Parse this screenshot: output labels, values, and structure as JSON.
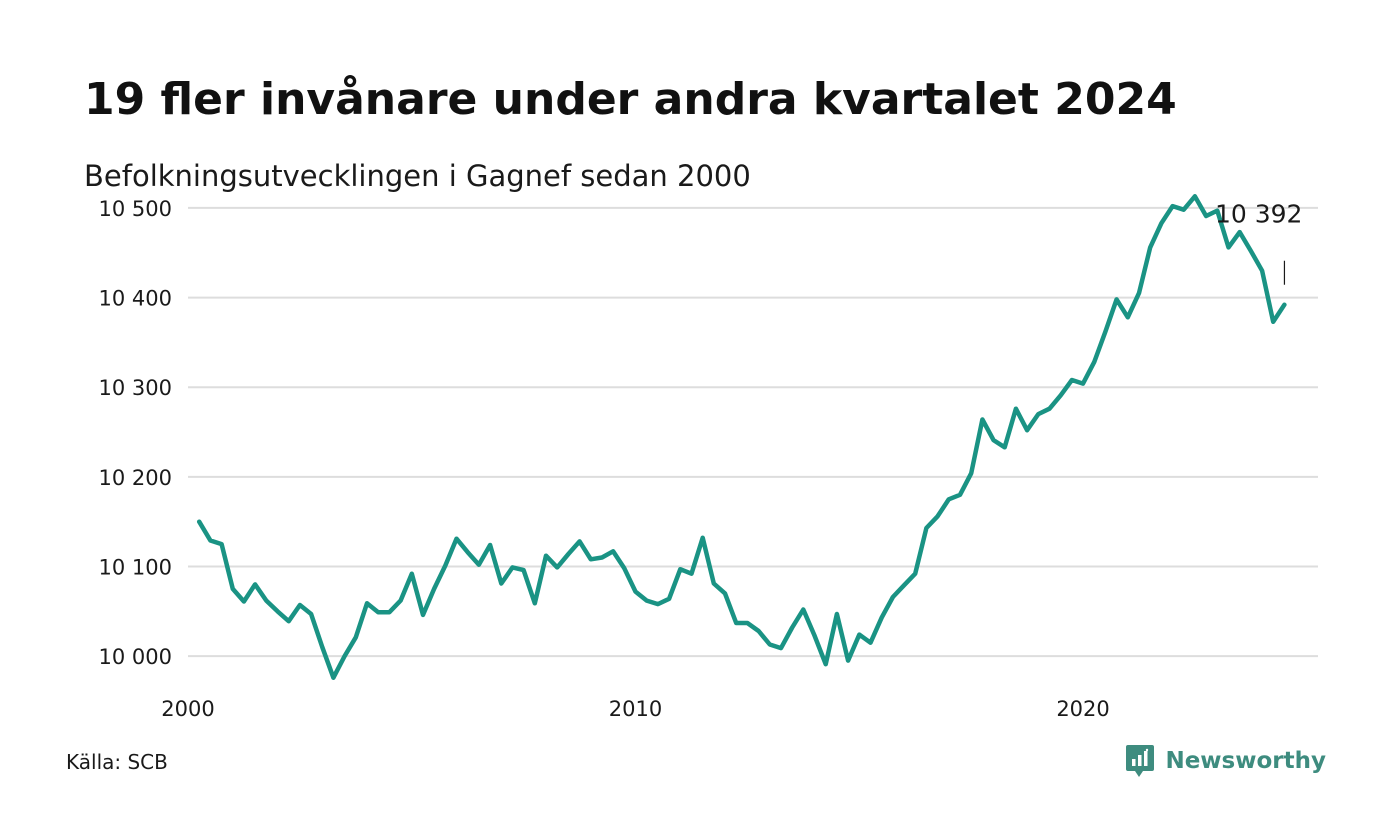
{
  "title": "19 fler invånare under andra kvartalet 2024",
  "subtitle": "Befolkningsutvecklingen i Gagnef sedan 2000",
  "source": "Källa: SCB",
  "brand": {
    "name": "Newsworthy",
    "icon": "newsworthy-logo-icon",
    "color": "#3e8c7f"
  },
  "colors": {
    "line": "#1a9384",
    "grid": "#dddddd",
    "text": "#1a1a1a"
  },
  "chart_data": {
    "type": "line",
    "title": "19 fler invånare under andra kvartalet 2024",
    "subtitle": "Befolkningsutvecklingen i Gagnef sedan 2000",
    "xlabel": "",
    "ylabel": "",
    "grid": true,
    "legend": "none",
    "xlim": [
      2000.0,
      2025.25
    ],
    "ylim": [
      9960,
      10520
    ],
    "x_ticks": [
      2000,
      2010,
      2020
    ],
    "x_tick_labels": [
      "2000",
      "2010",
      "2020"
    ],
    "y_ticks": [
      10000,
      10100,
      10200,
      10300,
      10400,
      10500
    ],
    "y_tick_labels": [
      "10 000",
      "10 100",
      "10 200",
      "10 300",
      "10 400",
      "10 500"
    ],
    "end_label": "10 392",
    "series": [
      {
        "x": [
          2000.25,
          2000.5,
          2000.75,
          2001.0,
          2001.25,
          2001.5,
          2001.75,
          2002.0,
          2002.25,
          2002.5,
          2002.75,
          2003.0,
          2003.25,
          2003.5,
          2003.75,
          2004.0,
          2004.25,
          2004.5,
          2004.75,
          2005.0,
          2005.25,
          2005.5,
          2005.75,
          2006.0,
          2006.25,
          2006.5,
          2006.75,
          2007.0,
          2007.25,
          2007.5,
          2007.75,
          2008.0,
          2008.25,
          2008.5,
          2008.75,
          2009.0,
          2009.25,
          2009.5,
          2009.75,
          2010.0,
          2010.25,
          2010.5,
          2010.75,
          2011.0,
          2011.25,
          2011.5,
          2011.75,
          2012.0,
          2012.25,
          2012.5,
          2012.75,
          2013.0,
          2013.25,
          2013.5,
          2013.75,
          2014.0,
          2014.25,
          2014.5,
          2014.75,
          2015.0,
          2015.25,
          2015.5,
          2015.75,
          2016.0,
          2016.25,
          2016.5,
          2016.75,
          2017.0,
          2017.25,
          2017.5,
          2017.75,
          2018.0,
          2018.25,
          2018.5,
          2018.75,
          2019.0,
          2019.25,
          2019.5,
          2019.75,
          2020.0,
          2020.25,
          2020.5,
          2020.75,
          2021.0,
          2021.25,
          2021.5,
          2021.75,
          2022.0,
          2022.25,
          2022.5,
          2022.75,
          2023.0,
          2023.25,
          2023.5,
          2023.75,
          2024.0,
          2024.25,
          2024.5
        ],
        "y": [
          10150,
          10129,
          10125,
          10075,
          10061,
          10080,
          10062,
          10050,
          10039,
          10057,
          10047,
          10010,
          9976,
          10000,
          10021,
          10059,
          10049,
          10049,
          10062,
          10092,
          10046,
          10075,
          10101,
          10131,
          10116,
          10102,
          10124,
          10081,
          10099,
          10096,
          10059,
          10112,
          10099,
          10114,
          10128,
          10108,
          10110,
          10117,
          10098,
          10072,
          10062,
          10058,
          10064,
          10097,
          10092,
          10132,
          10081,
          10070,
          10037,
          10037,
          10028,
          10013,
          10009,
          10032,
          10052,
          10023,
          9991,
          10047,
          9995,
          10024,
          10015,
          10043,
          10066,
          10079,
          10092,
          10143,
          10156,
          10175,
          10180,
          10204,
          10264,
          10241,
          10233,
          10276,
          10252,
          10270,
          10276,
          10291,
          10308,
          10304,
          10328,
          10362,
          10398,
          10378,
          10405,
          10456,
          10483,
          10502,
          10498,
          10513,
          10491,
          10497,
          10456,
          10473,
          10452,
          10430,
          10373,
          10392
        ]
      }
    ]
  }
}
